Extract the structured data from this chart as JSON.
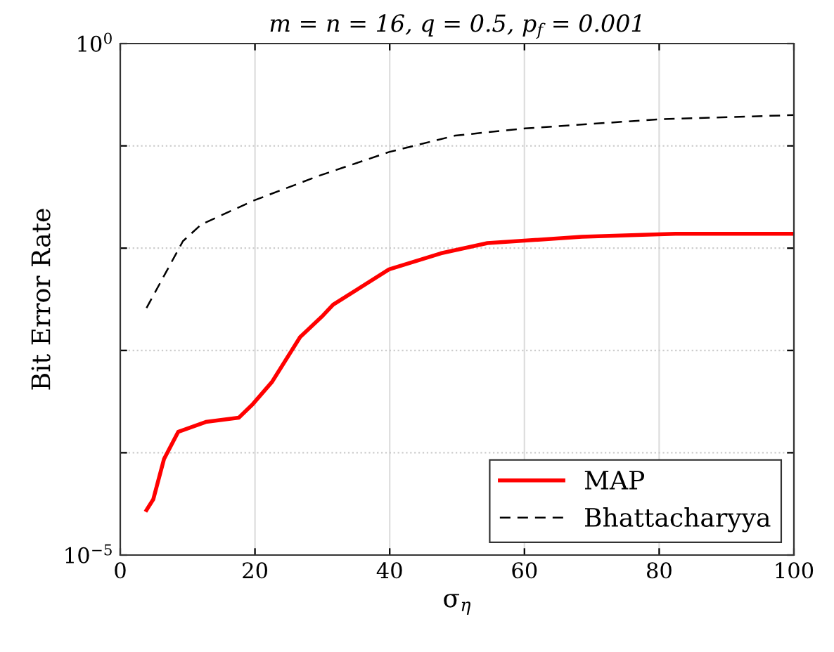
{
  "chart_data": {
    "type": "line",
    "title": "m = n = 16, q = 0.5, p$_{f}$ = 0.001",
    "xlabel": "σ$_{η}$",
    "ylabel": "Bit Error Rate",
    "series": [
      {
        "name": "MAP",
        "color": "#ff0000",
        "line_style": "solid",
        "x": [
          3.9,
          4.9,
          6.5,
          8.6,
          12.7,
          17.6,
          19.7,
          22.5,
          26.7,
          30.1,
          31.6,
          39.9,
          47.6,
          54.5,
          68.5,
          82.4,
          100
        ],
        "values": [
          2.75e-05,
          3.5e-05,
          8.7e-05,
          0.00016,
          0.0002,
          0.00022,
          0.0003,
          0.00049,
          0.00135,
          0.0022,
          0.0028,
          0.0062,
          0.0089,
          0.0112,
          0.0129,
          0.0138,
          0.0138
        ]
      },
      {
        "name": "Bhattacharyya",
        "color": "#000000",
        "line_style": "dashed",
        "x": [
          3.9,
          9.3,
          12,
          19.7,
          29.5,
          39.9,
          49.7,
          60.1,
          80,
          100
        ],
        "values": [
          0.0026,
          0.0117,
          0.017,
          0.029,
          0.051,
          0.087,
          0.126,
          0.148,
          0.182,
          0.2
        ]
      }
    ],
    "log": "y",
    "xlim": [
      0,
      100
    ],
    "xticks": [
      0,
      20,
      40,
      60,
      80,
      100
    ],
    "ylim": [
      1e-05,
      1
    ],
    "yticks": [
      {
        "value": 1e-05,
        "label": "10$^{−5}$"
      },
      {
        "value": 0.0001,
        "label": null
      },
      {
        "value": 0.001,
        "label": null
      },
      {
        "value": 0.01,
        "label": null
      },
      {
        "value": 0.1,
        "label": null
      },
      {
        "value": 1,
        "label": "10$^{0}$"
      }
    ],
    "grid": true,
    "legend": "bottom right",
    "marker": "none"
  }
}
